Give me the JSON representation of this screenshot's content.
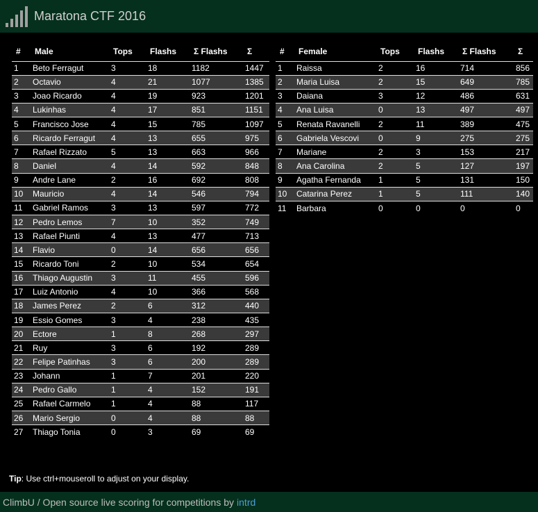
{
  "header": {
    "title": "Maratona CTF 2016",
    "logo_icon": "bar-chart-icon"
  },
  "male": {
    "columns": [
      "#",
      "Male",
      "Tops",
      "Flashs",
      "Σ Flashs",
      "Σ"
    ],
    "rows": [
      [
        "1",
        "Beto Ferragut",
        "3",
        "18",
        "1182",
        "1447"
      ],
      [
        "2",
        "Octavio",
        "4",
        "21",
        "1077",
        "1385"
      ],
      [
        "3",
        "Joao Ricardo",
        "4",
        "19",
        "923",
        "1201"
      ],
      [
        "4",
        "Lukinhas",
        "4",
        "17",
        "851",
        "1151"
      ],
      [
        "5",
        "Francisco Jose",
        "4",
        "15",
        "785",
        "1097"
      ],
      [
        "6",
        "Ricardo Ferragut",
        "4",
        "13",
        "655",
        "975"
      ],
      [
        "7",
        "Rafael Rizzato",
        "5",
        "13",
        "663",
        "966"
      ],
      [
        "8",
        "Daniel",
        "4",
        "14",
        "592",
        "848"
      ],
      [
        "9",
        "Andre Lane",
        "2",
        "16",
        "692",
        "808"
      ],
      [
        "10",
        "Mauricio",
        "4",
        "14",
        "546",
        "794"
      ],
      [
        "11",
        "Gabriel Ramos",
        "3",
        "13",
        "597",
        "772"
      ],
      [
        "12",
        "Pedro Lemos",
        "7",
        "10",
        "352",
        "749"
      ],
      [
        "13",
        "Rafael Piunti",
        "4",
        "13",
        "477",
        "713"
      ],
      [
        "14",
        "Flavio",
        "0",
        "14",
        "656",
        "656"
      ],
      [
        "15",
        "Ricardo Toni",
        "2",
        "10",
        "534",
        "654"
      ],
      [
        "16",
        "Thiago Augustin",
        "3",
        "11",
        "455",
        "596"
      ],
      [
        "17",
        "Luiz Antonio",
        "4",
        "10",
        "366",
        "568"
      ],
      [
        "18",
        "James Perez",
        "2",
        "6",
        "312",
        "440"
      ],
      [
        "19",
        "Essio Gomes",
        "3",
        "4",
        "238",
        "435"
      ],
      [
        "20",
        "Ectore",
        "1",
        "8",
        "268",
        "297"
      ],
      [
        "21",
        "Ruy",
        "3",
        "6",
        "192",
        "289"
      ],
      [
        "22",
        "Felipe Patinhas",
        "3",
        "6",
        "200",
        "289"
      ],
      [
        "23",
        "Johann",
        "1",
        "7",
        "201",
        "220"
      ],
      [
        "24",
        "Pedro Gallo",
        "1",
        "4",
        "152",
        "191"
      ],
      [
        "25",
        "Rafael Carmelo",
        "1",
        "4",
        "88",
        "117"
      ],
      [
        "26",
        "Mario Sergio",
        "0",
        "4",
        "88",
        "88"
      ],
      [
        "27",
        "Thiago Tonia",
        "0",
        "3",
        "69",
        "69"
      ]
    ]
  },
  "female": {
    "columns": [
      "#",
      "Female",
      "Tops",
      "Flashs",
      "Σ Flashs",
      "Σ"
    ],
    "rows": [
      [
        "1",
        "Raissa",
        "2",
        "16",
        "714",
        "856"
      ],
      [
        "2",
        "Maria Luisa",
        "2",
        "15",
        "649",
        "785"
      ],
      [
        "3",
        "Daiana",
        "3",
        "12",
        "486",
        "631"
      ],
      [
        "4",
        "Ana Luisa",
        "0",
        "13",
        "497",
        "497"
      ],
      [
        "5",
        "Renata Ravanelli",
        "2",
        "11",
        "389",
        "475"
      ],
      [
        "6",
        "Gabriela Vescovi",
        "0",
        "9",
        "275",
        "275"
      ],
      [
        "7",
        "Mariane",
        "2",
        "3",
        "153",
        "217"
      ],
      [
        "8",
        "Ana Carolina",
        "2",
        "5",
        "127",
        "197"
      ],
      [
        "9",
        "Agatha Fernanda",
        "1",
        "5",
        "131",
        "150"
      ],
      [
        "10",
        "Catarina Perez",
        "1",
        "5",
        "111",
        "140"
      ],
      [
        "11",
        "Barbara",
        "0",
        "0",
        "0",
        "0"
      ]
    ]
  },
  "tip": {
    "label": "Tip",
    "text": ": Use ctrl+mouseroll to adjust on your display."
  },
  "footer": {
    "text": "ClimbU / Open source live scoring for competitions by",
    "link": "intrd"
  }
}
